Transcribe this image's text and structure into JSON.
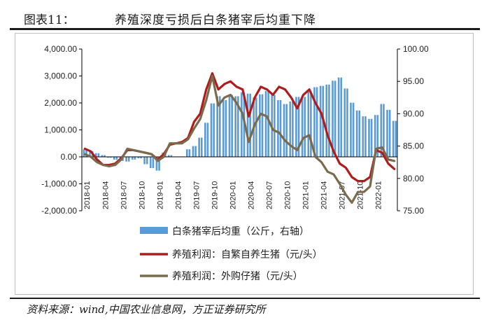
{
  "header": {
    "figure_label": "图表11：",
    "title": "养殖深度亏损后白条猪宰后均重下降"
  },
  "footer": {
    "source": "资料来源：wind,中国农业信息网，方正证券研究所"
  },
  "chart_data": {
    "type": "bar+line",
    "x": [
      "2018-01",
      "2018-02",
      "2018-03",
      "2018-04",
      "2018-05",
      "2018-06",
      "2018-07",
      "2018-08",
      "2018-09",
      "2018-10",
      "2018-11",
      "2018-12",
      "2019-01",
      "2019-02",
      "2019-03",
      "2019-04",
      "2019-05",
      "2019-06",
      "2019-07",
      "2019-08",
      "2019-09",
      "2019-10",
      "2019-11",
      "2019-12",
      "2020-01",
      "2020-02",
      "2020-03",
      "2020-04",
      "2020-05",
      "2020-06",
      "2020-07",
      "2020-08",
      "2020-09",
      "2020-10",
      "2020-11",
      "2020-12",
      "2021-01",
      "2021-02",
      "2021-03",
      "2021-04",
      "2021-05",
      "2021-06",
      "2021-07",
      "2021-08",
      "2021-09",
      "2021-10",
      "2021-11",
      "2021-12",
      "2022-01",
      "2022-02",
      "2022-03",
      "2022-04"
    ],
    "x_tick_labels": [
      "2018-01",
      "2018-04",
      "2018-07",
      "2018-10",
      "2019-01",
      "2019-04",
      "2019-07",
      "2019-10",
      "2020-01",
      "2020-04",
      "2020-07",
      "2020-10",
      "2021-01",
      "2021-04",
      "2021-07",
      "2021-10",
      "2022-01"
    ],
    "y_left": {
      "ticks": [
        "4,000.00",
        "3,000.00",
        "2,000.00",
        "1,000.00",
        "0.00",
        "-1,000.00",
        "-2,000.00"
      ],
      "range": [
        -2000,
        4000
      ]
    },
    "y_right": {
      "ticks": [
        "100.00",
        "95.00",
        "90.00",
        "85.00",
        "80.00",
        "75.00"
      ],
      "range": [
        75,
        100
      ]
    },
    "series": [
      {
        "name": "白条猪宰后均重（公斤，右轴）",
        "type": "bar",
        "axis": "right",
        "color": "#5b9bd5",
        "values": [
          84.5,
          84.2,
          83.9,
          83.6,
          83.2,
          82.9,
          82.7,
          82.6,
          82.9,
          83.1,
          82.2,
          81.6,
          81.2,
          84.0,
          83.6,
          83.4,
          83.4,
          84.5,
          85.0,
          86.3,
          88.6,
          91.6,
          92.7,
          92.1,
          92.9,
          92.7,
          93.3,
          93.1,
          92.5,
          93.0,
          93.5,
          92.9,
          92.1,
          91.5,
          91.9,
          92.6,
          92.6,
          93.4,
          94.1,
          94.3,
          94.5,
          95.1,
          95.6,
          93.9,
          91.7,
          90.5,
          89.6,
          89.2,
          89.8,
          91.5,
          90.6,
          88.9
        ]
      },
      {
        "name": "养殖利润：自繁自养生猪（元/头）",
        "type": "line",
        "axis": "left",
        "color": "#b01c1c",
        "values": [
          300,
          200,
          -100,
          -300,
          -300,
          -250,
          -50,
          250,
          250,
          200,
          150,
          100,
          -100,
          100,
          450,
          500,
          550,
          700,
          1300,
          1600,
          2500,
          3100,
          2500,
          2700,
          2800,
          2600,
          2500,
          1500,
          2200,
          2600,
          2500,
          2300,
          2600,
          2500,
          2200,
          1800,
          2300,
          2500,
          2000,
          1600,
          800,
          200,
          -250,
          -400,
          -750,
          -900,
          -900,
          -750,
          250,
          150,
          -250,
          -450
        ]
      },
      {
        "name": "养殖利润：外购仔猪（元/头）",
        "type": "line",
        "axis": "left",
        "color": "#7a6b4e",
        "values": [
          100,
          0,
          -200,
          -300,
          -350,
          -300,
          -100,
          300,
          250,
          200,
          150,
          100,
          -150,
          0,
          500,
          500,
          500,
          650,
          1050,
          1400,
          2100,
          3000,
          1900,
          2200,
          2300,
          2000,
          1600,
          550,
          1200,
          1600,
          1500,
          1000,
          900,
          600,
          400,
          250,
          700,
          800,
          0,
          -200,
          -550,
          -650,
          -1000,
          -1400,
          -1700,
          -1300,
          -1300,
          -1100,
          300,
          350,
          -100,
          -150
        ]
      }
    ],
    "legend_position": "bottom",
    "grid": false
  }
}
